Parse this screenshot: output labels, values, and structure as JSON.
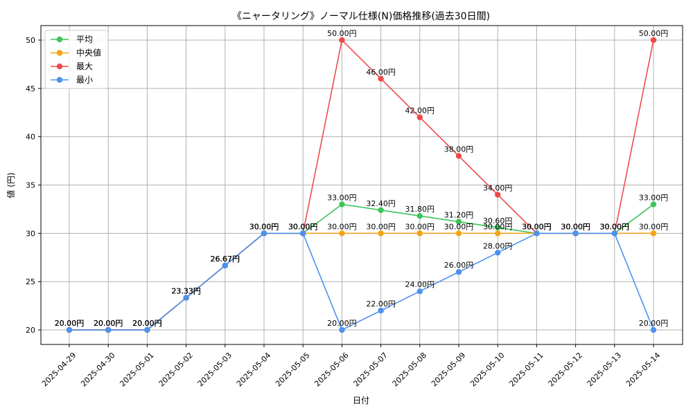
{
  "chart_data": {
    "type": "line",
    "title": "《ニャータリング》ノーマル仕様(N)価格推移(過去30日間)",
    "xlabel": "日付",
    "ylabel": "値 (円)",
    "ylim": [
      18.5,
      51.5
    ],
    "yticks": [
      20,
      25,
      30,
      35,
      40,
      45,
      50
    ],
    "categories": [
      "2025-04-29",
      "2025-04-30",
      "2025-05-01",
      "2025-05-02",
      "2025-05-03",
      "2025-05-04",
      "2025-05-05",
      "2025-05-06",
      "2025-05-07",
      "2025-05-08",
      "2025-05-09",
      "2025-05-10",
      "2025-05-11",
      "2025-05-12",
      "2025-05-13",
      "2025-05-14"
    ],
    "label_suffix": "円",
    "grid": true,
    "legend_position": "top-left",
    "series": [
      {
        "name": "平均",
        "color": "#3cc55a",
        "values": [
          20,
          20,
          20,
          23.33,
          26.67,
          30,
          30,
          33,
          32.4,
          31.8,
          31.2,
          30.6,
          30,
          30,
          30,
          33
        ]
      },
      {
        "name": "中央値",
        "color": "#f5a316",
        "values": [
          20,
          20,
          20,
          23.33,
          26.67,
          30,
          30,
          30,
          30,
          30,
          30,
          30,
          30,
          30,
          30,
          30
        ]
      },
      {
        "name": "最大",
        "color": "#ef4a4a",
        "values": [
          20,
          20,
          20,
          23.33,
          26.67,
          30,
          30,
          50,
          46,
          42,
          38,
          34,
          30,
          30,
          30,
          50
        ]
      },
      {
        "name": "最小",
        "color": "#4b92ee",
        "values": [
          20,
          20,
          20,
          23.33,
          26.67,
          30,
          30,
          20,
          22,
          24,
          26,
          28,
          30,
          30,
          30,
          20
        ]
      }
    ]
  }
}
